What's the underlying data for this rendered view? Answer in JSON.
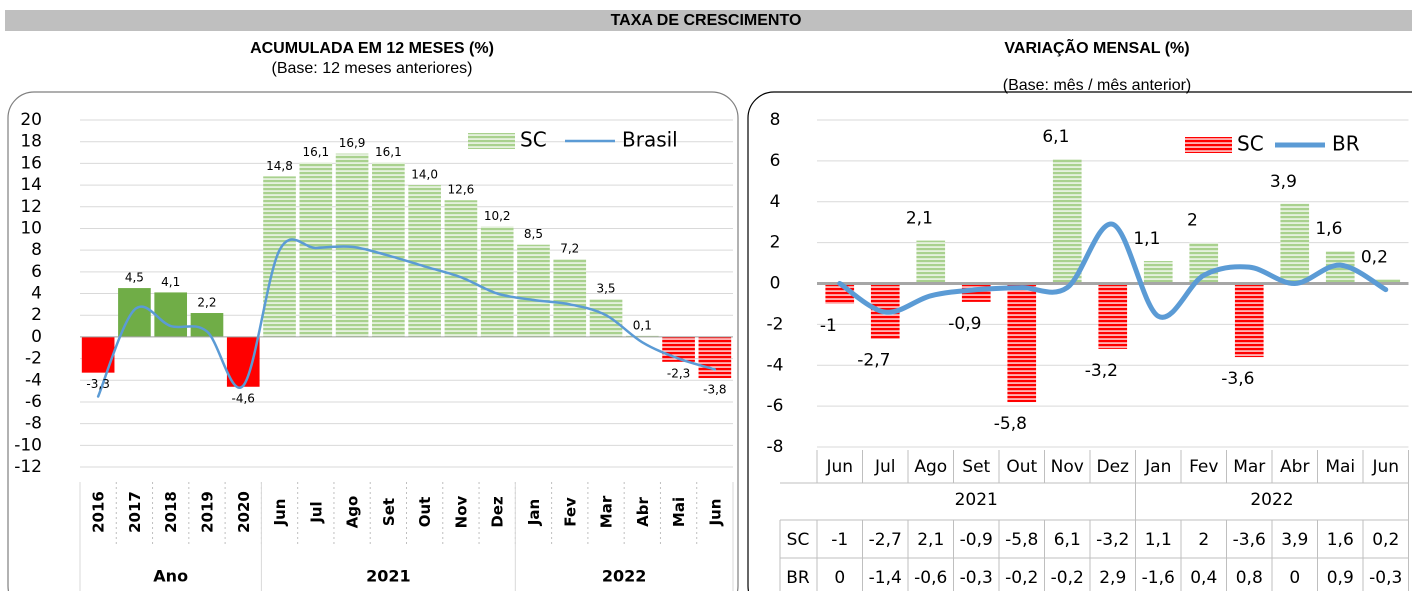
{
  "header": {
    "title": "TAXA DE CRESCIMENTO"
  },
  "chart_data": [
    {
      "type": "bar",
      "title": "ACUMULADA EM 12 MESES (%)",
      "subtitle": "(Base: 12 meses anteriores)",
      "categories": [
        "2016",
        "2017",
        "2018",
        "2019",
        "2020",
        "Jun",
        "Jul",
        "Ago",
        "Set",
        "Out",
        "Nov",
        "Dez",
        "Jan",
        "Fev",
        "Mar",
        "Abr",
        "Mai",
        "Jun"
      ],
      "x_groups": [
        {
          "label": "Ano",
          "count": 5
        },
        {
          "label": "2021",
          "count": 7
        },
        {
          "label": "2022",
          "count": 6
        }
      ],
      "series": [
        {
          "name": "SC",
          "type": "bar",
          "color": "#a9d18e",
          "values": [
            -3.3,
            4.5,
            4.1,
            2.2,
            -4.6,
            14.8,
            16.1,
            16.9,
            16.1,
            14.0,
            12.6,
            10.2,
            8.5,
            7.2,
            3.5,
            0.1,
            -2.3,
            -3.8
          ],
          "value_labels": [
            "-3,3",
            "4,5",
            "4,1",
            "2,2",
            "-4,6",
            "14,8",
            "16,1",
            "16,9",
            "16,1",
            "14,0",
            "12,6",
            "10,2",
            "8,5",
            "7,2",
            "3,5",
            "0,1",
            "-2,3",
            "-3,8"
          ],
          "colors": [
            "#ff0000",
            "#70ad47",
            "#70ad47",
            "#70ad47",
            "#ff0000",
            "#a9d18e",
            "#a9d18e",
            "#a9d18e",
            "#a9d18e",
            "#a9d18e",
            "#a9d18e",
            "#a9d18e",
            "#a9d18e",
            "#a9d18e",
            "#a9d18e",
            "#a9d18e",
            "#ff0000",
            "#ff0000"
          ],
          "hatched": [
            false,
            false,
            false,
            false,
            false,
            true,
            true,
            true,
            true,
            true,
            true,
            true,
            true,
            true,
            true,
            true,
            true,
            true
          ]
        },
        {
          "name": "Brasil",
          "type": "line",
          "color": "#5b9bd5",
          "values": [
            -5.5,
            2.5,
            1.0,
            0.5,
            -4.5,
            8.0,
            8.2,
            8.3,
            7.5,
            6.5,
            5.5,
            4.0,
            3.4,
            3.0,
            2.0,
            -0.5,
            -2.0,
            -3.0
          ]
        }
      ],
      "ylim": [
        -12,
        20
      ],
      "yticks": [
        -12,
        -10,
        -8,
        -6,
        -4,
        -2,
        0,
        2,
        4,
        6,
        8,
        10,
        12,
        14,
        16,
        18,
        20
      ],
      "grid": true,
      "legend": "top-right"
    },
    {
      "type": "bar",
      "title": "VARIAÇÃO MENSAL (%)",
      "subtitle": "(Base: mês / mês anterior)",
      "categories": [
        "Jun",
        "Jul",
        "Ago",
        "Set",
        "Out",
        "Nov",
        "Dez",
        "Jan",
        "Fev",
        "Mar",
        "Abr",
        "Mai",
        "Jun"
      ],
      "x_groups": [
        {
          "label": "2021",
          "count": 7
        },
        {
          "label": "2022",
          "count": 6
        }
      ],
      "series": [
        {
          "name": "SC",
          "type": "bar",
          "color": "#ff0000",
          "values": [
            -1,
            -2.7,
            2.1,
            -0.9,
            -5.8,
            6.1,
            -3.2,
            1.1,
            2,
            -3.6,
            3.9,
            1.6,
            0.2
          ],
          "value_labels": [
            "-1",
            "-2,7",
            "2,1",
            "-0,9",
            "-5,8",
            "6,1",
            "-3,2",
            "1,1",
            "2",
            "-3,6",
            "3,9",
            "1,6",
            "0,2"
          ],
          "colors": [
            "#ff0000",
            "#ff0000",
            "#a9d18e",
            "#ff0000",
            "#ff0000",
            "#a9d18e",
            "#ff0000",
            "#a9d18e",
            "#a9d18e",
            "#ff0000",
            "#a9d18e",
            "#a9d18e",
            "#a9d18e"
          ]
        },
        {
          "name": "BR",
          "type": "line",
          "color": "#5b9bd5",
          "values": [
            0,
            -1.4,
            -0.6,
            -0.3,
            -0.2,
            -0.2,
            2.9,
            -1.6,
            0.4,
            0.8,
            0,
            0.9,
            -0.3
          ],
          "value_labels": [
            "0",
            "-1,4",
            "-0,6",
            "-0,3",
            "-0,2",
            "-0,2",
            "2,9",
            "-1,6",
            "0,4",
            "0,8",
            "0",
            "0,9",
            "-0,3"
          ]
        }
      ],
      "ylim": [
        -8,
        8
      ],
      "yticks": [
        -8,
        -6,
        -4,
        -2,
        0,
        2,
        4,
        6,
        8
      ],
      "grid": true,
      "legend": "top-right",
      "data_table": true
    }
  ]
}
